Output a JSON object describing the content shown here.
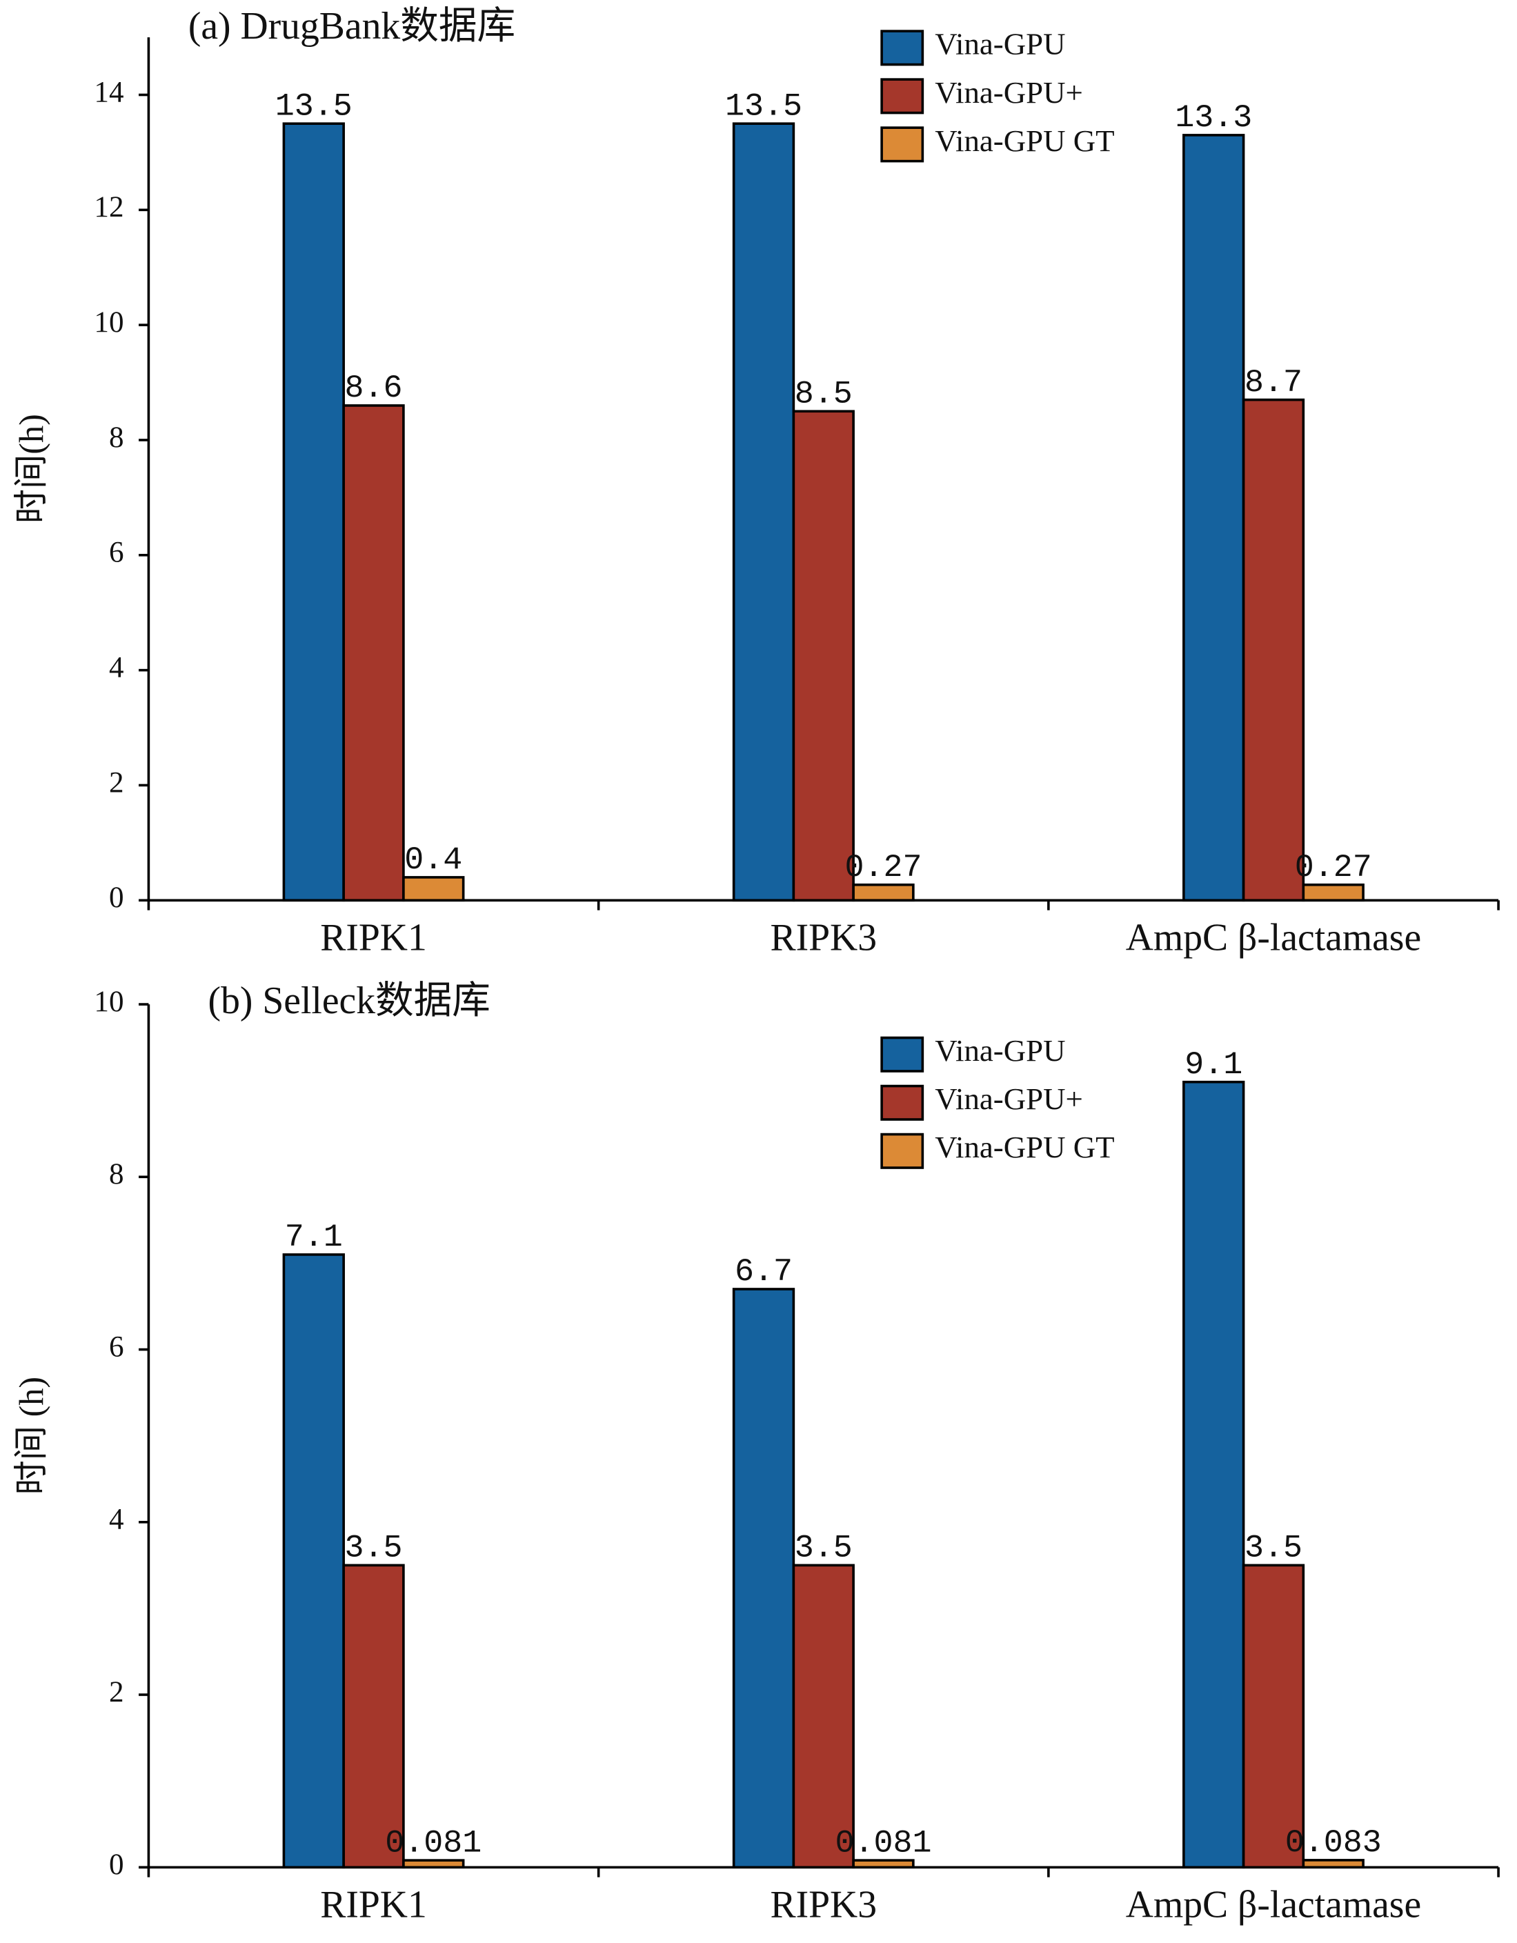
{
  "chart_data": [
    {
      "type": "bar",
      "title": "(a) DrugBank数据库",
      "y_label": "时间(h)",
      "categories": [
        "RIPK1",
        "RIPK3",
        "AmpC β-lactamase"
      ],
      "series": [
        {
          "name": "Vina-GPU",
          "color": "#15629e",
          "values": [
            13.5,
            13.5,
            13.3
          ]
        },
        {
          "name": "Vina-GPU+",
          "color": "#a5372b",
          "values": [
            8.6,
            8.5,
            8.7
          ]
        },
        {
          "name": "Vina-GPU GT",
          "color": "#dc8a36",
          "values": [
            0.4,
            0.27,
            0.27
          ]
        }
      ],
      "ylim": [
        0,
        15
      ],
      "yticks": [
        0,
        2,
        4,
        6,
        8,
        10,
        12,
        14
      ],
      "legend": "upper right",
      "grid": false
    },
    {
      "type": "bar",
      "title": "(b) Selleck数据库",
      "y_label": "时间 (h)",
      "categories": [
        "RIPK1",
        "RIPK3",
        "AmpC β-lactamase"
      ],
      "series": [
        {
          "name": "Vina-GPU",
          "color": "#15629e",
          "values": [
            7.1,
            6.7,
            9.1
          ]
        },
        {
          "name": "Vina-GPU+",
          "color": "#a5372b",
          "values": [
            3.5,
            3.5,
            3.5
          ]
        },
        {
          "name": "Vina-GPU GT",
          "color": "#dc8a36",
          "values": [
            0.081,
            0.081,
            0.083
          ]
        }
      ],
      "ylim": [
        0,
        10
      ],
      "yticks": [
        0,
        2,
        4,
        6,
        8,
        10
      ],
      "legend": "upper right",
      "grid": false
    }
  ]
}
